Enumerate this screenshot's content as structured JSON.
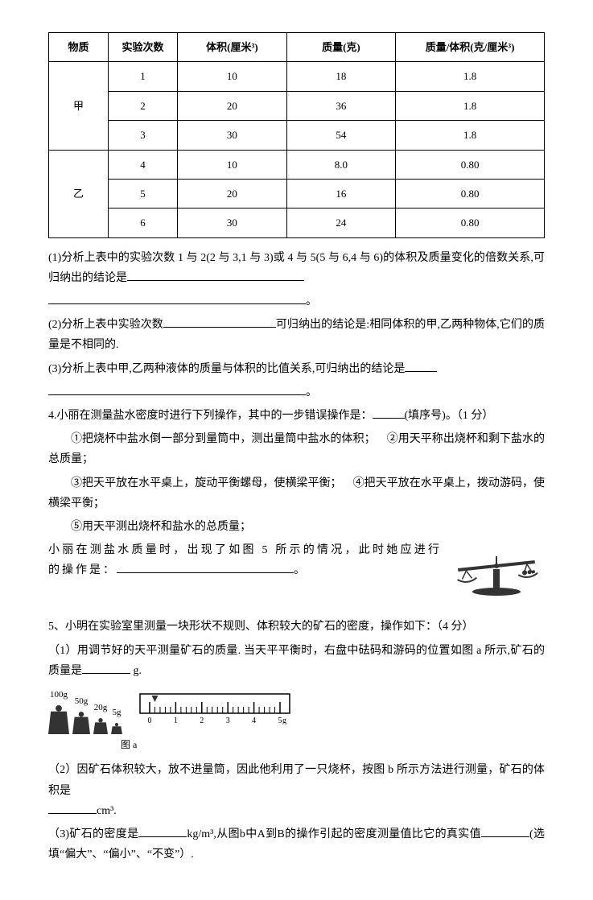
{
  "table": {
    "headers": {
      "substance": "物质",
      "trials": "实验次数",
      "volume": "体积(厘米³)",
      "mass": "质量(克)",
      "ratio": "质量/体积(克/厘米³)"
    },
    "groups": [
      {
        "name": "甲",
        "rows": [
          {
            "trial": "1",
            "volume": "10",
            "mass": "18",
            "ratio": "1.8"
          },
          {
            "trial": "2",
            "volume": "20",
            "mass": "36",
            "ratio": "1.8"
          },
          {
            "trial": "3",
            "volume": "30",
            "mass": "54",
            "ratio": "1.8"
          }
        ]
      },
      {
        "name": "乙",
        "rows": [
          {
            "trial": "4",
            "volume": "10",
            "mass": "8.0",
            "ratio": "0.80"
          },
          {
            "trial": "5",
            "volume": "20",
            "mass": "16",
            "ratio": "0.80"
          },
          {
            "trial": "6",
            "volume": "30",
            "mass": "24",
            "ratio": "0.80"
          }
        ]
      }
    ]
  },
  "q1": {
    "text_a": "(1)分析上表中的实验次数 1 与 2(2 与 3,1 与 3)或 4 与 5(5 与 6,4 与 6)的体积及质量变化的倍数关系,可归纳出的结论是",
    "period": "。"
  },
  "q2": {
    "text_a": "(2)分析上表中实验次数",
    "text_b": "可归纳出的结论是:相同体积的甲,乙两种物体,它们的质量是不相同的."
  },
  "q3": {
    "text_a": "(3)分析上表中甲,乙两种液体的质量与体积的比值关系,可归纳出的结论是",
    "period": "。"
  },
  "q4": {
    "lead": "4.小丽在测量盐水密度时进行下列操作，其中的一步错误操作是：",
    "lead_tail": "(填序号)。（1 分）",
    "step1": "①把烧杯中盐水倒一部分到量筒中，测出量筒中盐水的体积；",
    "step2": "②用天平称出烧杯和剩下盐水的总质量；",
    "step3": "③把天平放在水平桌上，旋动平衡螺母，使横梁平衡；",
    "step4": "④把天平放在水平桌上，拨动游码，使横梁平衡；",
    "step5": "⑤用天平测出烧杯和盐水的总质量；",
    "tail_a": "小丽在测盐水质量时，出现了如图 5 所示的情况，此时她应进行的操作是：",
    "period": "。"
  },
  "q5": {
    "lead": "5、小明在实验室里测量一块形状不规则、体积较大的矿石的密度，操作如下：（4 分）",
    "sub1_a": "（1）用调节好的天平测量矿石的质量. 当天平平衡时，右盘中砝码和游码的位置如图 a 所示,矿石的质量是",
    "sub1_b": " g.",
    "fig_caption": "图 a",
    "sub2_a": "（2）因矿石体积较大，放不进量筒，因此他利用了一只烧杯，按图 b 所示方法进行测量，矿石的体积是",
    "sub2_b": "cm³.",
    "sub3_a": "（3)矿石的密度是",
    "sub3_b": "kg/m³,从图b中A到B的操作引起的密度测量值比它的真实值",
    "sub3_c": "(选填“偏大”、“偏小”、“不变”）."
  },
  "weights": {
    "items": [
      {
        "label": "100g",
        "w": 26,
        "h": 38
      },
      {
        "label": "50g",
        "w": 22,
        "h": 30
      },
      {
        "label": "20g",
        "w": 18,
        "h": 22
      },
      {
        "label": "5g",
        "w": 14,
        "h": 16
      }
    ]
  },
  "ruler": {
    "labels": [
      "0",
      "1",
      "2",
      "3",
      "4",
      "5"
    ],
    "unit": "g",
    "width": 190,
    "height": 40,
    "major_ticks": 6,
    "minor_per_major": 5
  },
  "style": {
    "stroke": "#000000",
    "fill_dark": "#333333",
    "fill_light": "#ffffff"
  }
}
